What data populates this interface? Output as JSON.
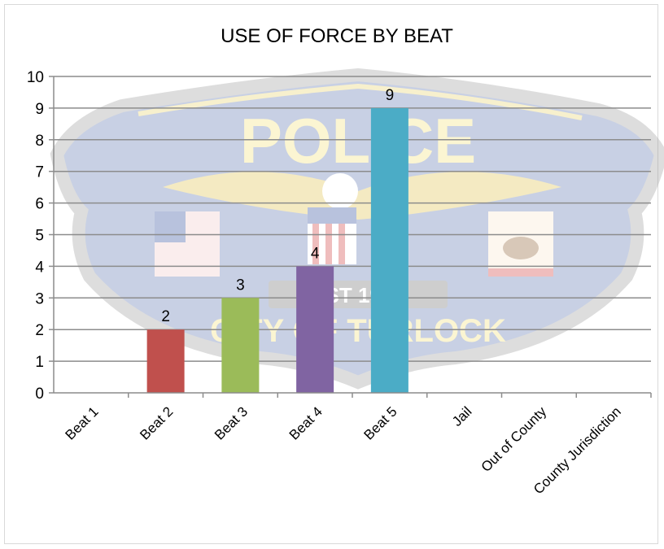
{
  "chart_data": {
    "type": "bar",
    "title": "USE OF FORCE BY BEAT",
    "categories": [
      "Beat 1",
      "Beat 2",
      "Beat 3",
      "Beat 4",
      "Beat 5",
      "Jail",
      "Out of County",
      "County Jurisdiction"
    ],
    "values": [
      0,
      2,
      3,
      4,
      9,
      0,
      0,
      0
    ],
    "data_labels": [
      "",
      "2",
      "3",
      "4",
      "9",
      "",
      "",
      ""
    ],
    "bar_colors": [
      "#c0504d",
      "#c0504d",
      "#9bbb59",
      "#8064a2",
      "#4bacc6",
      "#4bacc6",
      "#4bacc6",
      "#4bacc6"
    ],
    "ylim": [
      0,
      10
    ],
    "yticks": [
      0,
      1,
      2,
      3,
      4,
      5,
      6,
      7,
      8,
      9,
      10
    ],
    "xlabel": "",
    "ylabel": "",
    "grid": true,
    "legend": "none"
  },
  "watermark": {
    "icon": "police-badge-watermark",
    "text_top": "POLICE",
    "text_bottom": "CITY OF TURLOCK",
    "text_est": "EST 1908"
  }
}
